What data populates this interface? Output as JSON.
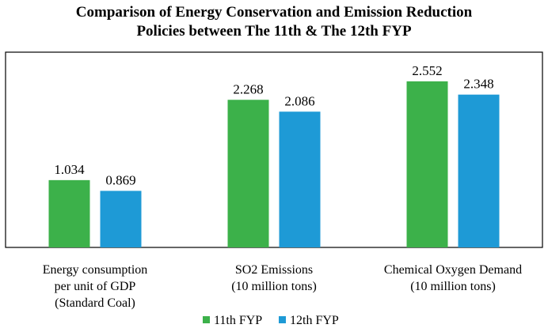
{
  "chart_data": {
    "type": "bar",
    "title_lines": [
      "Comparison of Energy Conservation and Emission Reduction",
      "Policies between The 11th & The 12th FYP"
    ],
    "categories": [
      [
        "Energy consumption",
        "per unit of GDP",
        "(Standard Coal)"
      ],
      [
        "SO2 Emissions",
        "(10 million tons)"
      ],
      [
        "Chemical Oxygen Demand",
        "(10 million tons)"
      ]
    ],
    "series": [
      {
        "name": "11th FYP",
        "color": "#3cb14a",
        "values": [
          1.034,
          2.268,
          2.552
        ]
      },
      {
        "name": "12th FYP",
        "color": "#1e9ad6",
        "values": [
          0.869,
          2.086,
          2.348
        ]
      }
    ],
    "value_labels": [
      [
        "1.034",
        "2.268",
        "2.552"
      ],
      [
        "0.869",
        "2.086",
        "2.348"
      ]
    ],
    "ylim": [
      0,
      3
    ],
    "grid": false,
    "legend_position": "bottom-center"
  }
}
